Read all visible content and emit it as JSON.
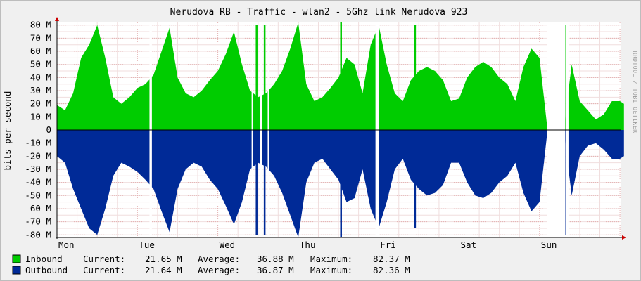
{
  "header": {
    "title": "Nerudova RB - Traffic - wlan2 - 5Ghz link Nerudova 923",
    "watermark": "RRDTOOL / TOBI OETIKER"
  },
  "colors": {
    "inbound": "#00cc00",
    "outbound": "#002a97",
    "background": "#f0f0f0",
    "canvas": "#ffffff",
    "grid": "#e3b0b0",
    "axis": "#cc0000"
  },
  "chart_data": {
    "type": "area",
    "ylabel": "bits per second",
    "ylim": [
      -82,
      82
    ],
    "ytick_values": [
      80,
      70,
      60,
      50,
      40,
      30,
      20,
      10,
      0,
      -10,
      -20,
      -30,
      -40,
      -50,
      -60,
      -70,
      -80
    ],
    "ytick_labels": [
      "80 M",
      "70 M",
      "60 M",
      "50 M",
      "40 M",
      "30 M",
      "20 M",
      "10 M",
      "0",
      "-10 M",
      "-20 M",
      "-30 M",
      "-40 M",
      "-50 M",
      "-60 M",
      "-70 M",
      "-80 M"
    ],
    "x_unit": "day",
    "xlim": [
      0,
      7.05
    ],
    "x_ticks": [
      {
        "label": "Mon",
        "x": 0
      },
      {
        "label": "Tue",
        "x": 1
      },
      {
        "label": "Wed",
        "x": 2
      },
      {
        "label": "Thu",
        "x": 3
      },
      {
        "label": "Fri",
        "x": 4
      },
      {
        "label": "Sat",
        "x": 5
      },
      {
        "label": "Sun",
        "x": 6
      }
    ],
    "x": [
      0.0,
      0.1,
      0.2,
      0.3,
      0.4,
      0.5,
      0.6,
      0.7,
      0.8,
      0.9,
      1.0,
      1.1,
      1.2,
      1.3,
      1.4,
      1.5,
      1.6,
      1.7,
      1.8,
      1.9,
      2.0,
      2.1,
      2.2,
      2.3,
      2.4,
      2.5,
      2.6,
      2.7,
      2.8,
      2.9,
      3.0,
      3.1,
      3.2,
      3.3,
      3.4,
      3.5,
      3.6,
      3.7,
      3.8,
      3.9,
      4.0,
      4.1,
      4.2,
      4.3,
      4.4,
      4.5,
      4.6,
      4.7,
      4.8,
      4.9,
      5.0,
      5.1,
      5.2,
      5.3,
      5.4,
      5.5,
      5.6,
      5.7,
      5.8,
      5.9,
      6.0,
      6.1,
      6.2,
      6.3,
      6.4,
      6.5,
      6.6,
      6.7,
      6.8,
      6.9,
      7.0,
      7.05
    ],
    "series": [
      {
        "name": "Inbound",
        "values": [
          19,
          15,
          28,
          55,
          65,
          80,
          55,
          25,
          20,
          25,
          32,
          35,
          42,
          60,
          78,
          40,
          28,
          25,
          30,
          38,
          45,
          58,
          75,
          50,
          30,
          25,
          28,
          35,
          45,
          62,
          82,
          35,
          22,
          25,
          32,
          40,
          55,
          50,
          28,
          65,
          80,
          50,
          28,
          22,
          38,
          45,
          48,
          45,
          38,
          22,
          24,
          40,
          48,
          52,
          48,
          40,
          35,
          22,
          48,
          62,
          55,
          0,
          0,
          0,
          50,
          22,
          15,
          8,
          12,
          22,
          22,
          20
        ]
      },
      {
        "name": "Outbound",
        "values": [
          -20,
          -25,
          -45,
          -60,
          -75,
          -80,
          -60,
          -35,
          -25,
          -28,
          -32,
          -38,
          -45,
          -62,
          -78,
          -45,
          -30,
          -25,
          -28,
          -38,
          -45,
          -58,
          -72,
          -55,
          -30,
          -25,
          -28,
          -35,
          -48,
          -65,
          -82,
          -40,
          -25,
          -22,
          -30,
          -38,
          -55,
          -52,
          -30,
          -60,
          -75,
          -55,
          -30,
          -22,
          -38,
          -45,
          -50,
          -48,
          -42,
          -25,
          -25,
          -40,
          -50,
          -52,
          -48,
          -40,
          -35,
          -25,
          -48,
          -62,
          -55,
          0,
          0,
          0,
          -50,
          -20,
          -12,
          -10,
          -15,
          -22,
          -22,
          -20
        ]
      }
    ],
    "gaps": [
      {
        "from": 1.15,
        "to": 1.18
      },
      {
        "from": 2.42,
        "to": 2.44
      },
      {
        "from": 2.52,
        "to": 2.55
      },
      {
        "from": 2.62,
        "to": 2.64
      },
      {
        "from": 3.96,
        "to": 4.0
      },
      {
        "from": 6.09,
        "to": 6.32
      },
      {
        "from": 6.33,
        "to": 6.36
      }
    ],
    "spikes": [
      {
        "x": 2.48,
        "in": 80,
        "out": -80
      },
      {
        "x": 2.58,
        "in": 80,
        "out": -80
      },
      {
        "x": 3.53,
        "in": 82,
        "out": -82
      },
      {
        "x": 4.45,
        "in": 80,
        "out": -75
      },
      {
        "x": 6.33,
        "in": 80,
        "out": -80
      }
    ],
    "grid": true,
    "legend_position": "bottom-left"
  },
  "legend": [
    {
      "name": "Inbound",
      "current": "21.65 M",
      "average": "36.88 M",
      "maximum": "82.37 M"
    },
    {
      "name": "Outbound",
      "current": "21.64 M",
      "average": "36.87 M",
      "maximum": "82.36 M"
    }
  ],
  "legend_labels": {
    "current": "Current:",
    "average": "Average:",
    "maximum": "Maximum:"
  }
}
